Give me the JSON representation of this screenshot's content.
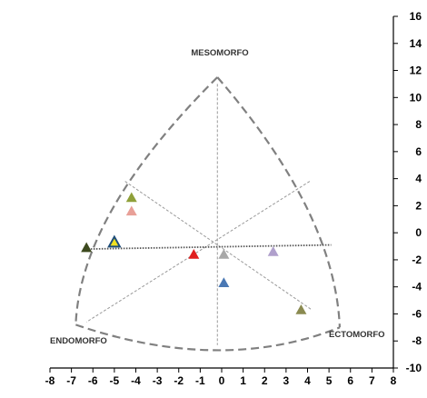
{
  "chart_data": {
    "type": "scatter",
    "subtype": "somatochart",
    "xlim": [
      -8,
      8
    ],
    "ylim": [
      -10,
      16
    ],
    "x_ticks": [
      "-8",
      "-7",
      "-6",
      "-5",
      "-4",
      "-3",
      "-2",
      "-1",
      "0",
      "1",
      "2",
      "3",
      "4",
      "5",
      "6",
      "7",
      "8"
    ],
    "y_ticks": [
      "-10",
      "-8",
      "-6",
      "-4",
      "-2",
      "0",
      "2",
      "4",
      "6",
      "8",
      "10",
      "12",
      "14",
      "16"
    ],
    "grid": false,
    "legend": "none",
    "corner_labels": {
      "top": "MESOMORFO",
      "left": "ENDOMORFO",
      "right": "ECTOMORFO"
    },
    "somatochart_outline": {
      "top": [
        -0.2,
        11.5
      ],
      "left": [
        -6.8,
        -6.8
      ],
      "right": [
        5.5,
        -7.0
      ],
      "bottom_center": [
        0,
        -8.5
      ],
      "color": "#808080"
    },
    "guide_lines": [
      {
        "from": [
          -4.5,
          3.8
        ],
        "to": [
          4.2,
          -5.7
        ]
      },
      {
        "from": [
          4.1,
          3.8
        ],
        "to": [
          -6.3,
          -6.6
        ]
      },
      {
        "from": [
          -0.2,
          11.0
        ],
        "to": [
          -0.2,
          -8.3
        ]
      }
    ],
    "trend_line": {
      "from": [
        -6.1,
        -1.2
      ],
      "to": [
        5.1,
        -0.9
      ],
      "color": "#555555"
    },
    "points": [
      {
        "x": -6.3,
        "y": -1.1,
        "color": "#3d4a1f"
      },
      {
        "x": -5.0,
        "y": -0.7,
        "color": "#f0e020",
        "outline": "#1f4e79",
        "hollow": true
      },
      {
        "x": -4.2,
        "y": 2.6,
        "color": "#8fa03a"
      },
      {
        "x": -4.2,
        "y": 1.6,
        "color": "#e8a098"
      },
      {
        "x": -1.3,
        "y": -1.6,
        "color": "#e02020"
      },
      {
        "x": 0.1,
        "y": -1.6,
        "color": "#a8a8a8"
      },
      {
        "x": 0.1,
        "y": -3.7,
        "color": "#4a78b4"
      },
      {
        "x": 2.4,
        "y": -1.4,
        "color": "#b0a0cc"
      },
      {
        "x": 3.7,
        "y": -5.7,
        "color": "#8a8a50"
      }
    ]
  }
}
